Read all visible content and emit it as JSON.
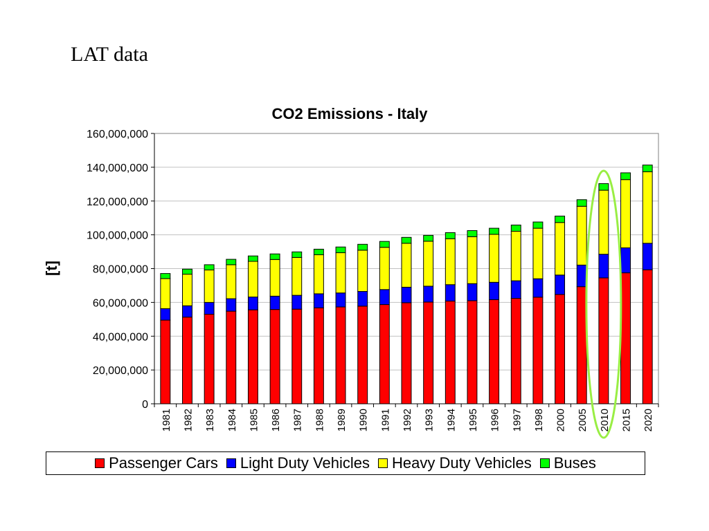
{
  "slide": {
    "title": "LAT data"
  },
  "chart_data": {
    "type": "bar",
    "stacked": true,
    "title": "CO2 Emissions - Italy",
    "xlabel": "",
    "ylabel": "[t]",
    "ylim": [
      0,
      160000000
    ],
    "yticks": [
      0,
      20000000,
      40000000,
      60000000,
      80000000,
      100000000,
      120000000,
      140000000,
      160000000
    ],
    "ytick_labels": [
      "0",
      "20,000,000",
      "40,000,000",
      "60,000,000",
      "80,000,000",
      "100,000,000",
      "120,000,000",
      "140,000,000",
      "160,000,000"
    ],
    "grid": true,
    "legend_position": "bottom",
    "categories": [
      "1981",
      "1982",
      "1983",
      "1984",
      "1985",
      "1986",
      "1987",
      "1988",
      "1989",
      "1990",
      "1991",
      "1992",
      "1993",
      "1994",
      "1995",
      "1996",
      "1997",
      "1998",
      "2000",
      "2005",
      "2010",
      "2015",
      "2020"
    ],
    "series": [
      {
        "name": "Passenger Cars",
        "color": "#ff0000",
        "values": [
          49500000,
          51300000,
          53000000,
          54800000,
          55600000,
          55800000,
          56000000,
          56800000,
          57300000,
          57800000,
          58700000,
          59800000,
          60200000,
          60800000,
          61000000,
          61600000,
          62400000,
          63100000,
          64700000,
          69300000,
          74500000,
          77500000,
          79300000
        ]
      },
      {
        "name": "Light Duty Vehicles",
        "color": "#0000ff",
        "values": [
          6800000,
          6700000,
          7000000,
          7400000,
          7600000,
          7900000,
          8200000,
          8300000,
          8300000,
          8700000,
          8900000,
          9200000,
          9400000,
          9700000,
          10100000,
          10300000,
          10400000,
          10900000,
          11500000,
          12800000,
          14000000,
          14800000,
          15700000
        ]
      },
      {
        "name": "Heavy Duty Vehicles",
        "color": "#ffff00",
        "values": [
          17800000,
          18700000,
          19200000,
          20100000,
          21100000,
          21700000,
          22400000,
          23100000,
          23800000,
          24400000,
          25000000,
          26000000,
          26600000,
          27200000,
          27800000,
          28400000,
          29300000,
          29900000,
          31100000,
          34800000,
          37900000,
          40400000,
          42300000
        ]
      },
      {
        "name": "Buses",
        "color": "#00ff00",
        "values": [
          3000000,
          3000000,
          3100000,
          3200000,
          3200000,
          3300000,
          3300000,
          3300000,
          3400000,
          3500000,
          3500000,
          3500000,
          3500000,
          3600000,
          3600000,
          3600000,
          3700000,
          3700000,
          3800000,
          3900000,
          3900000,
          4000000,
          4000000
        ]
      }
    ],
    "highlight": {
      "category": "2010",
      "shape": "ellipse",
      "color": "#99ee44"
    }
  }
}
